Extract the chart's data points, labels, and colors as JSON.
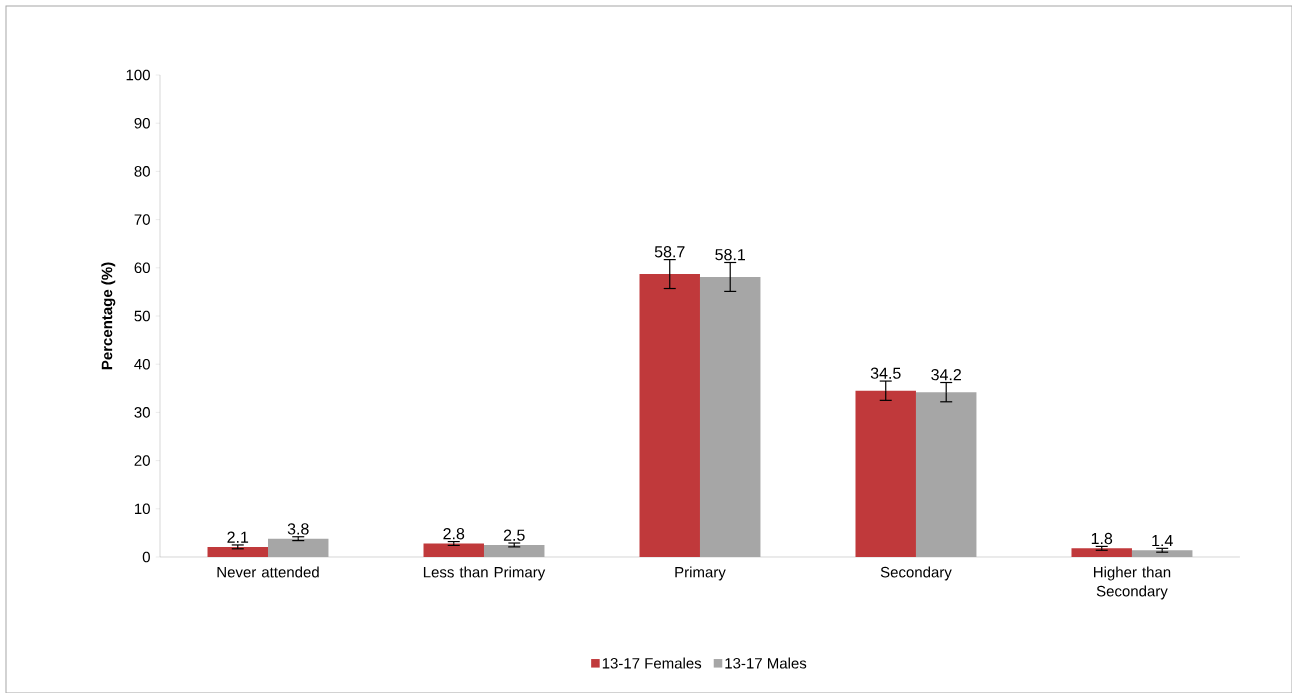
{
  "chart_data": {
    "type": "bar",
    "ylabel": "Percentage (%)",
    "categories": [
      "Never attended",
      "Less than Primary",
      "Primary",
      "Secondary",
      "Higher than Secondary"
    ],
    "series": [
      {
        "name": "13-17 Females",
        "color": "#c0393b",
        "values": [
          2.1,
          2.8,
          58.7,
          34.5,
          1.8
        ],
        "errors": [
          0.4,
          0.4,
          3,
          2,
          0.4
        ]
      },
      {
        "name": "13-17 Males",
        "color": "#a6a6a6",
        "values": [
          3.8,
          2.5,
          58.1,
          34.2,
          1.4
        ],
        "errors": [
          0.4,
          0.4,
          3,
          2,
          0.4
        ]
      }
    ],
    "ylim": [
      0,
      100
    ],
    "yticks": [
      0,
      10,
      20,
      30,
      40,
      50,
      60,
      70,
      80,
      90,
      100
    ],
    "data_labels": true,
    "grid": false,
    "legend": "bottom"
  }
}
